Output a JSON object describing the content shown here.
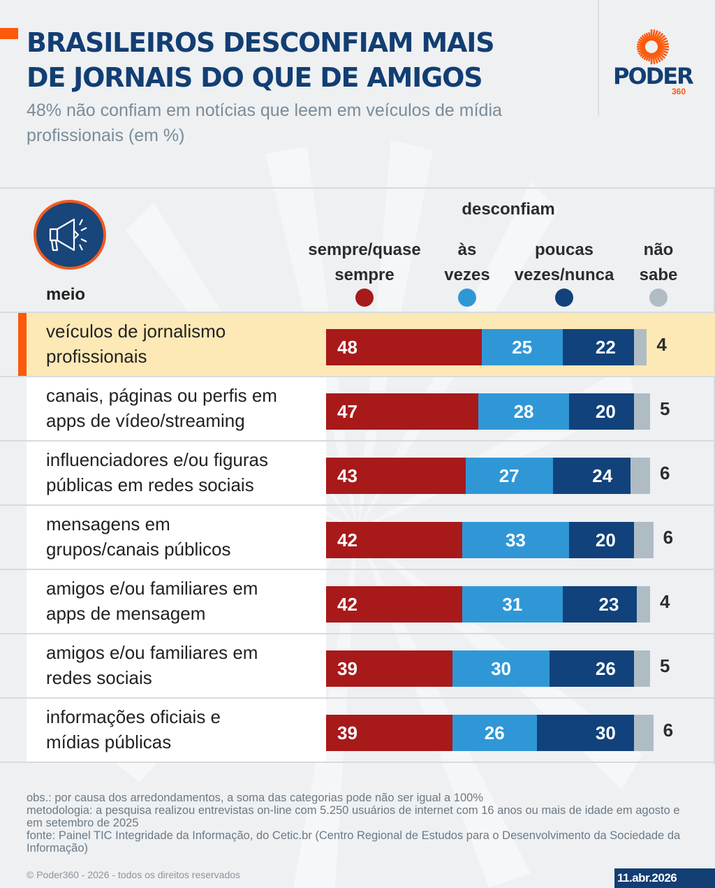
{
  "header": {
    "title_lines": [
      "BRASILEIROS DESCONFIAM MAIS",
      "DE JORNAIS DO QUE DE AMIGOS"
    ],
    "subtitle": "48% não confiam em notícias que leem em veículos de mídia profissionais (em %)",
    "brand": "PODER",
    "brand_sub": "360"
  },
  "colors": {
    "accent": "#fa5a0a",
    "title": "#123e73",
    "highlight_row": "#fde9b5"
  },
  "chart_data": {
    "type": "bar",
    "orientation": "horizontal",
    "stacked": true,
    "title": "BRASILEIROS DESCONFIAM MAIS DE JORNAIS DO QUE DE AMIGOS",
    "subtitle": "48% não confiam em notícias que leem em veículos de mídia profissionais (em %)",
    "category_header": "meio",
    "group_label": "desconfiam",
    "categories": [
      "veículos de jornalismo profissionais",
      "canais, páginas ou perfis em apps de vídeo/streaming",
      "influenciadores e/ou figuras públicas em redes sociais",
      "mensagens em grupos/canais públicos",
      "amigos e/ou familiares em apps de mensagem",
      "amigos e/ou familiares em redes sociais",
      "informações oficiais e mídias públicas"
    ],
    "category_lines": [
      [
        "veículos de jornalismo",
        "profissionais"
      ],
      [
        "canais, páginas ou perfis em",
        "apps de vídeo/streaming"
      ],
      [
        "influenciadores e/ou figuras",
        "públicas em redes sociais"
      ],
      [
        "mensagens em",
        "grupos/canais públicos"
      ],
      [
        "amigos e/ou familiares em",
        "apps de mensagem"
      ],
      [
        "amigos e/ou familiares em",
        "redes sociais"
      ],
      [
        "informações oficiais e",
        "mídias públicas"
      ]
    ],
    "highlighted_category_index": 0,
    "series": [
      {
        "name": "sempre/quase sempre",
        "legend_lines": [
          "sempre/quase",
          "sempre"
        ],
        "color": "#a8191a",
        "values": [
          48,
          47,
          43,
          42,
          42,
          39,
          39
        ]
      },
      {
        "name": "às vezes",
        "legend_lines": [
          "às",
          "vezes"
        ],
        "color": "#3097d6",
        "values": [
          25,
          28,
          27,
          33,
          31,
          30,
          26
        ]
      },
      {
        "name": "poucas vezes/nunca",
        "legend_lines": [
          "poucas",
          "vezes/nunca"
        ],
        "color": "#11427b",
        "values": [
          22,
          20,
          24,
          20,
          23,
          26,
          30
        ]
      },
      {
        "name": "não sabe",
        "legend_lines": [
          "não",
          "sabe"
        ],
        "color": "#b0bcc4",
        "values": [
          4,
          5,
          6,
          6,
          4,
          5,
          6
        ]
      }
    ],
    "xlim": [
      0,
      100
    ],
    "unit": "%",
    "legend_position": "top"
  },
  "footer": {
    "notes": [
      "obs.: por causa dos arredondamentos, a soma das categorias pode não ser igual a 100%",
      "metodologia: a pesquisa realizou entrevistas on-line com 5.250 usuários de internet com 16 anos ou mais de idade em agosto e em setembro de 2025",
      "fonte: Painel TIC Integridade da Informação, do Cetic.br (Centro Regional de Estudos para o Desenvolvimento da Sociedade da Informação)"
    ],
    "copyright": "© Poder360 - 2026 - todos os direitos reservados",
    "date": "11.abr.2026"
  }
}
